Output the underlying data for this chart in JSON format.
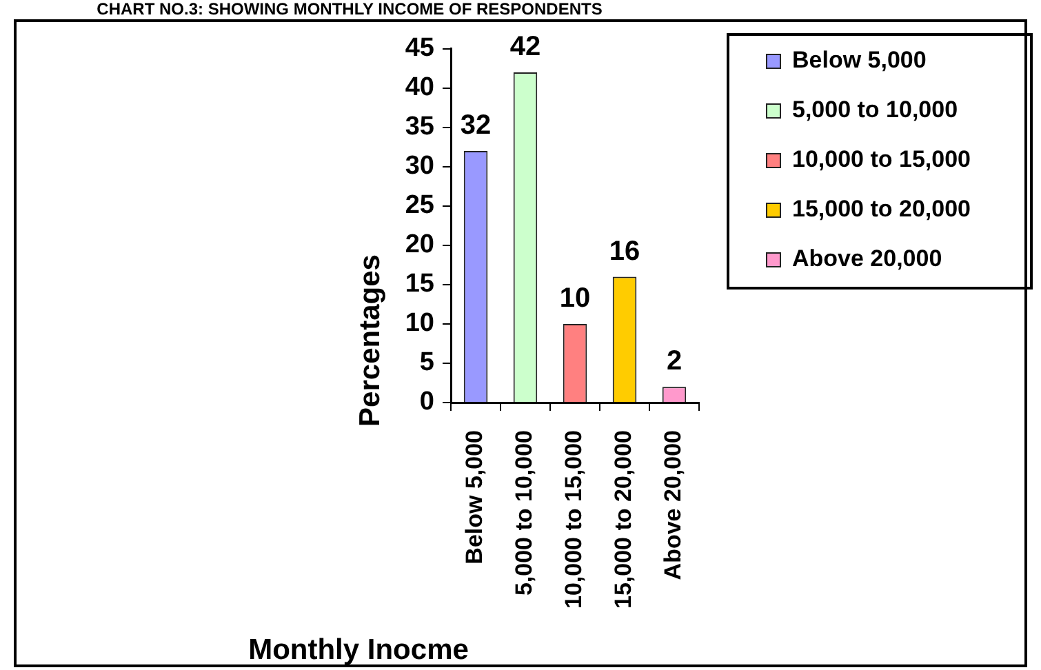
{
  "chart_data": {
    "type": "bar",
    "title": "CHART NO.3: SHOWING MONTHLY INCOME OF RESPONDENTS",
    "xlabel": "Monthly Inocme",
    "ylabel": "Percentages",
    "categories": [
      "Below 5,000",
      "5,000 to 10,000",
      "10,000 to 15,000",
      "15,000 to 20,000",
      "Above 20,000"
    ],
    "series": [
      {
        "name": "Below 5,000",
        "color": "#9999ff",
        "values": [
          32,
          null,
          null,
          null,
          null
        ]
      },
      {
        "name": "5,000 to 10,000",
        "color": "#ccffcc",
        "values": [
          null,
          42,
          null,
          null,
          null
        ]
      },
      {
        "name": "10,000 to 15,000",
        "color": "#ff8080",
        "values": [
          null,
          null,
          10,
          null,
          null
        ]
      },
      {
        "name": "15,000 to 20,000",
        "color": "#ffcc00",
        "values": [
          null,
          null,
          null,
          16,
          null
        ]
      },
      {
        "name": "Above 20,000",
        "color": "#ff99cc",
        "values": [
          null,
          null,
          null,
          null,
          2
        ]
      }
    ],
    "ylim": [
      0,
      45
    ],
    "yticks": [
      0,
      5,
      10,
      15,
      20,
      25,
      30,
      35,
      40,
      45
    ],
    "data_labels": true,
    "legend": "top right"
  }
}
